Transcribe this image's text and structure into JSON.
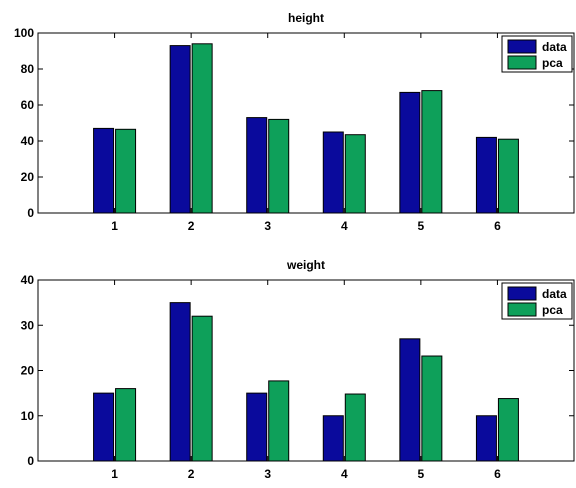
{
  "chart_data": [
    {
      "type": "bar",
      "title": "height",
      "xlabel": "",
      "ylabel": "",
      "categories": [
        "1",
        "2",
        "3",
        "4",
        "5",
        "6"
      ],
      "series": [
        {
          "name": "data",
          "color": "#0a0a9c",
          "values": [
            47,
            93,
            53,
            45,
            67,
            42
          ]
        },
        {
          "name": "pca",
          "color": "#0ea05a",
          "values": [
            46.5,
            94,
            52,
            43.5,
            68,
            41
          ]
        }
      ],
      "ylim": [
        0,
        100
      ],
      "yticks": [
        "0",
        "20",
        "40",
        "60",
        "80",
        "100"
      ],
      "grid": false,
      "legend": "top-right"
    },
    {
      "type": "bar",
      "title": "weight",
      "xlabel": "",
      "ylabel": "",
      "categories": [
        "1",
        "2",
        "3",
        "4",
        "5",
        "6"
      ],
      "series": [
        {
          "name": "data",
          "color": "#0a0a9c",
          "values": [
            15,
            35,
            15,
            10,
            27,
            10
          ]
        },
        {
          "name": "pca",
          "color": "#0ea05a",
          "values": [
            16,
            32,
            17.7,
            14.8,
            23.2,
            13.8
          ]
        }
      ],
      "ylim": [
        0,
        40
      ],
      "yticks": [
        "0",
        "10",
        "20",
        "30",
        "40"
      ],
      "grid": false,
      "legend": "top-right"
    }
  ]
}
